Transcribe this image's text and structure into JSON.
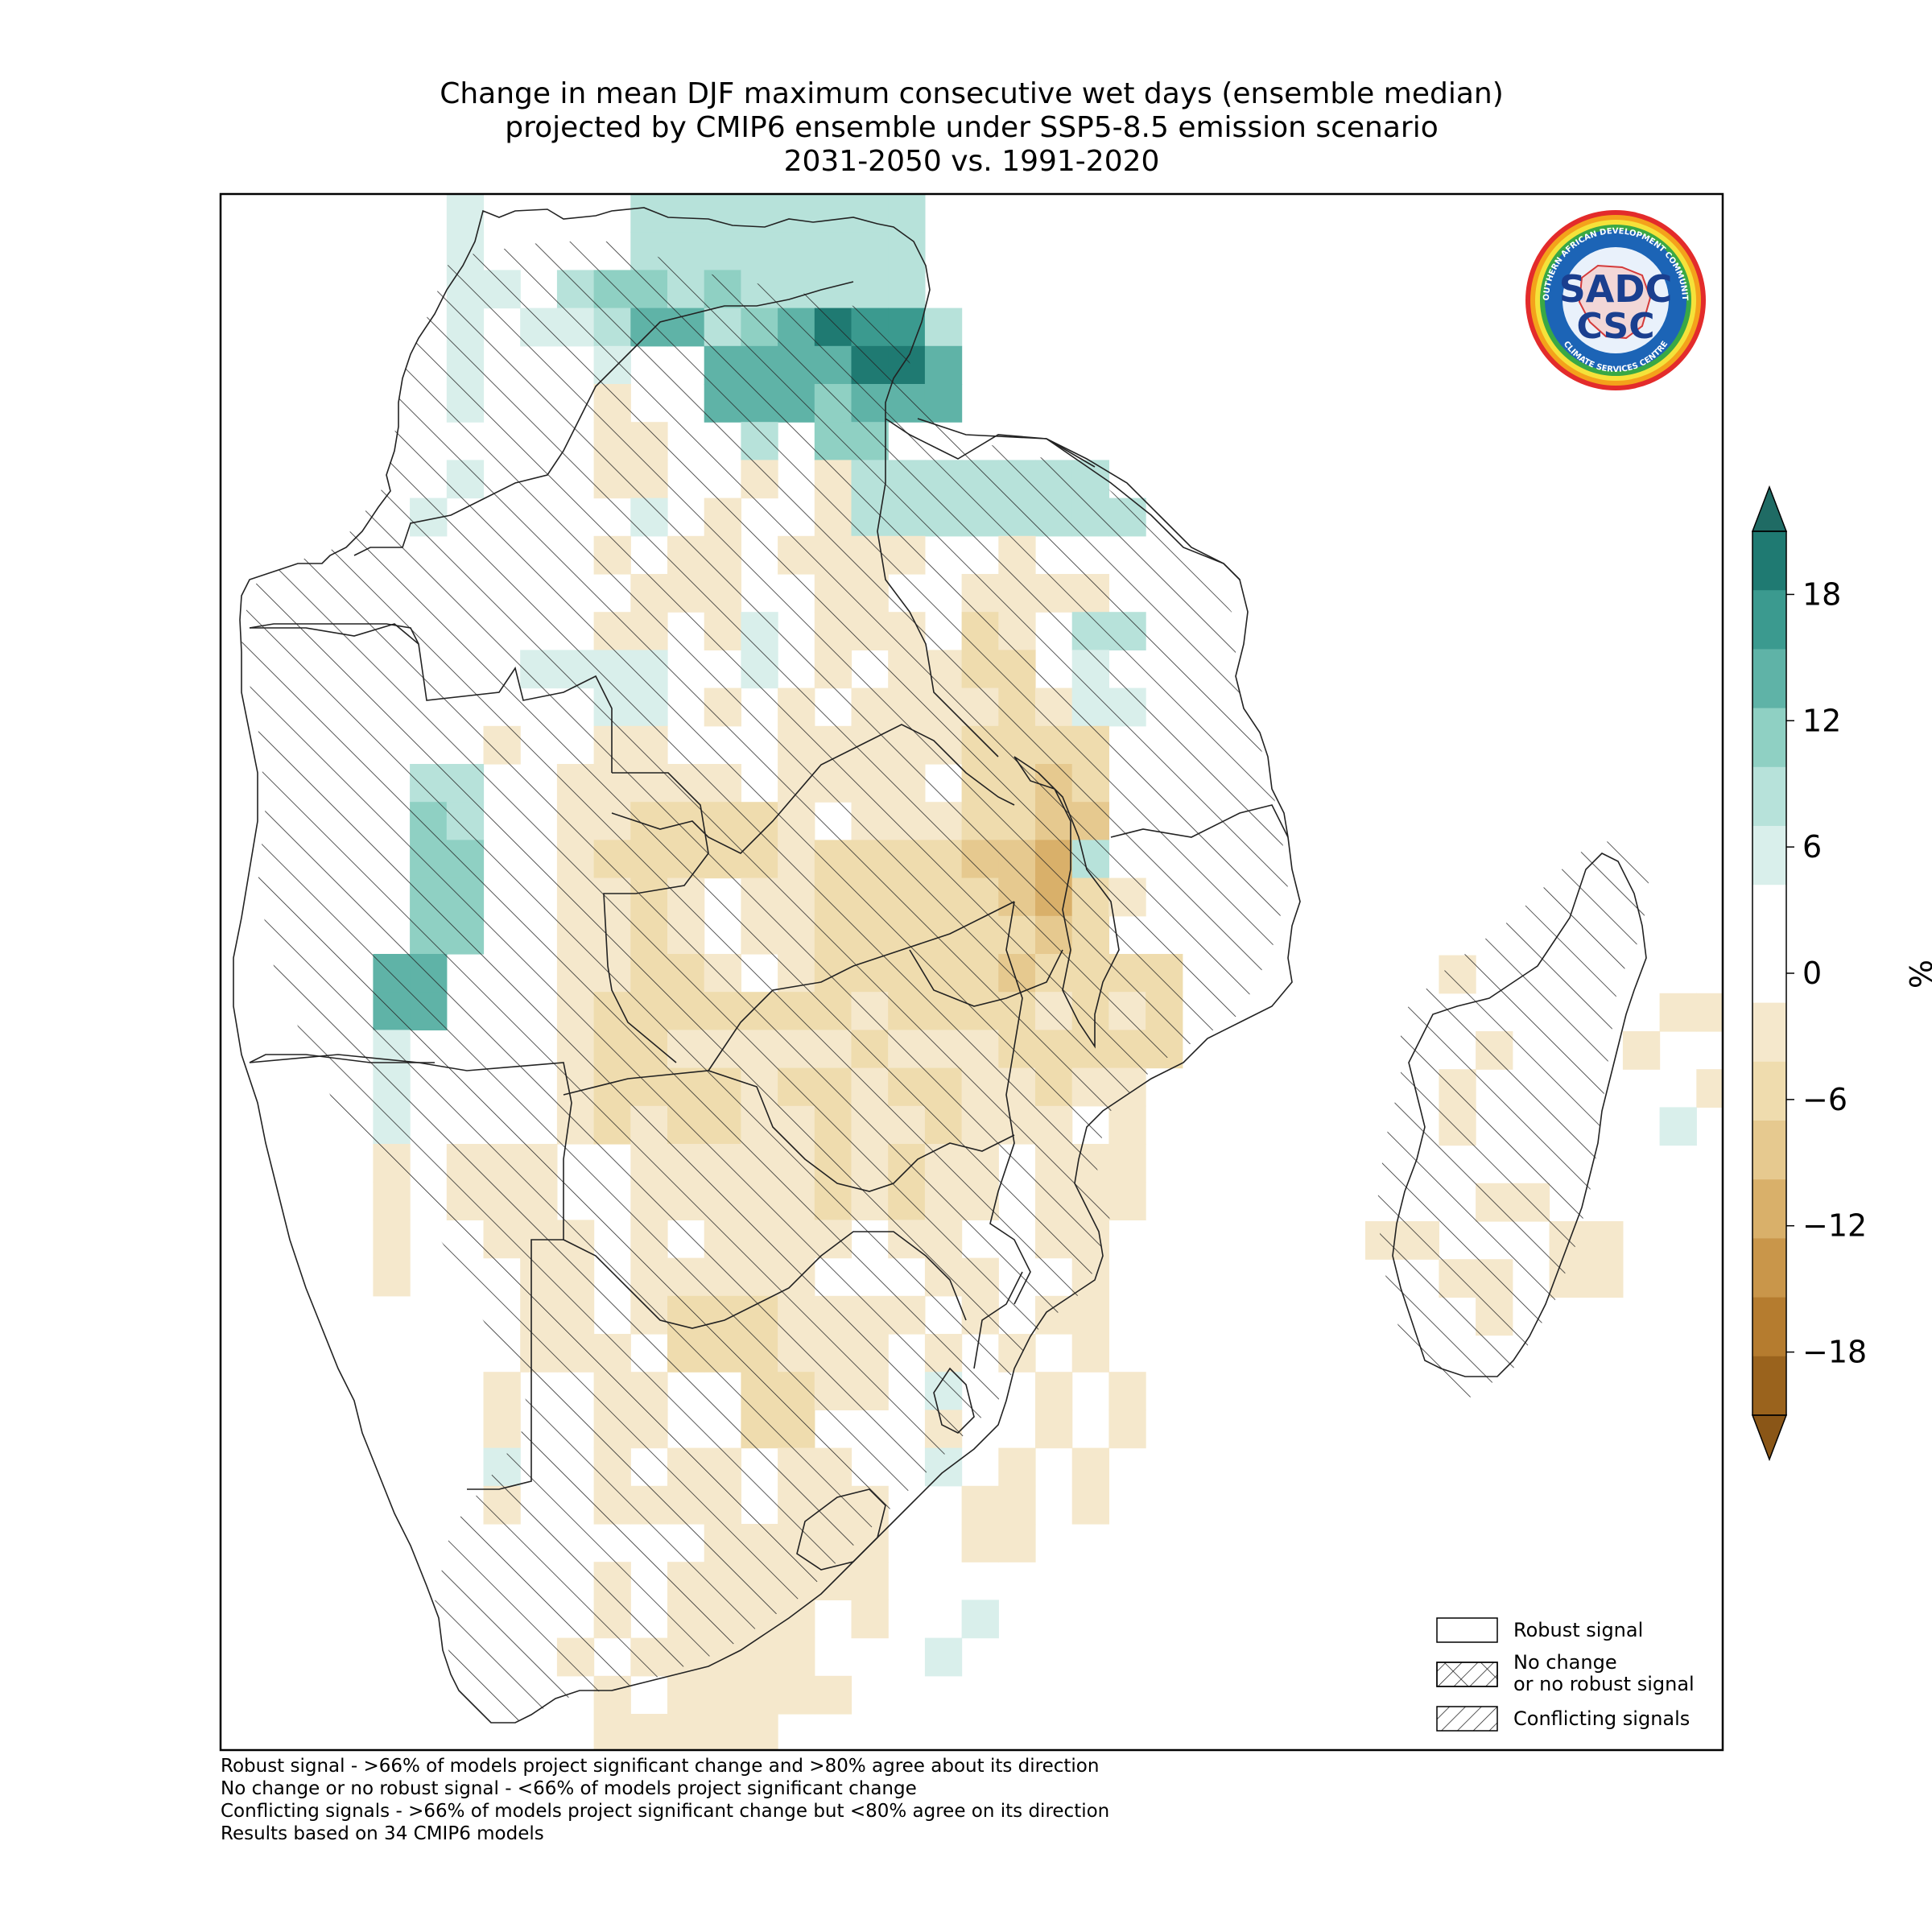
{
  "title": {
    "line1": "Change in mean DJF maximum consecutive wet days (ensemble median)",
    "line2": "projected by CMIP6 ensemble under SSP5-8.5 emission scenario",
    "line3": "2031-2050 vs. 1991-2020"
  },
  "logo": {
    "ring_text_top": "SOUTHERN AFRICAN DEVELOPMENT COMMUNITY",
    "ring_text_bottom": "CLIMATE SERVICES CENTRE",
    "monogram": "SADC",
    "acronym": "CSC"
  },
  "legend": {
    "robust": "Robust signal",
    "no_change_line1": "No change",
    "no_change_line2": "or no robust signal",
    "conflicting": "Conflicting signals"
  },
  "colorbar": {
    "unit": "%",
    "ticks": [
      18,
      12,
      6,
      0,
      -6,
      -12,
      -18
    ],
    "tick_labels": [
      "18",
      "12",
      "6",
      "0",
      "−6",
      "−12",
      "−18"
    ],
    "min": -21,
    "max": 21,
    "extend": "both",
    "colors_top_to_bottom": [
      "#1f7a72",
      "#3b9a8f",
      "#5fb3a7",
      "#8fd0c3",
      "#b7e2da",
      "#d9efeb",
      "#ffffff",
      "#ffffff",
      "#f5e8cc",
      "#efdcae",
      "#e6c98f",
      "#d9b06a",
      "#c9964a",
      "#b57c2f",
      "#9a631d"
    ],
    "extend_top_color": "#1f6b64",
    "extend_bottom_color": "#8a5617"
  },
  "footnotes": [
    "Robust signal - >66% of models project significant change and >80% agree about its direction",
    "No change or no robust signal - <66% of models project significant change",
    "Conflicting signals - >66% of models project significant change but <80% agree on its direction",
    "Results based on 34 CMIP6 models"
  ]
}
